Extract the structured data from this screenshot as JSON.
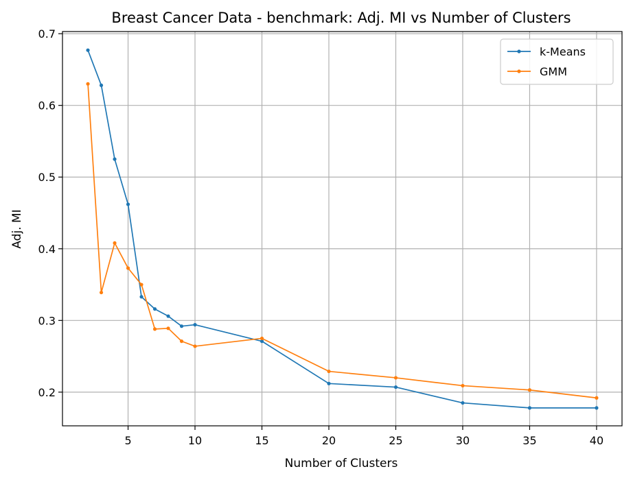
{
  "chart_data": {
    "type": "line",
    "title": "Breast Cancer Data - benchmark: Adj. MI vs Number of Clusters",
    "xlabel": "Number of Clusters",
    "ylabel": "Adj. MI",
    "xlim": [
      0.1,
      41.9
    ],
    "ylim": [
      0.153,
      0.703
    ],
    "xticks": [
      5,
      10,
      15,
      20,
      25,
      30,
      35,
      40
    ],
    "xtick_labels": [
      "5",
      "10",
      "15",
      "20",
      "25",
      "30",
      "35",
      "40"
    ],
    "yticks": [
      0.2,
      0.3,
      0.4,
      0.5,
      0.6,
      0.7
    ],
    "ytick_labels": [
      "0.2",
      "0.3",
      "0.4",
      "0.5",
      "0.6",
      "0.7"
    ],
    "grid": true,
    "legend_position": "top-right",
    "x": [
      2,
      3,
      4,
      5,
      6,
      7,
      8,
      9,
      10,
      15,
      20,
      25,
      30,
      35,
      40
    ],
    "series": [
      {
        "name": "k-Means",
        "color": "#1f77b4",
        "values": [
          0.677,
          0.628,
          0.525,
          0.462,
          0.333,
          0.316,
          0.306,
          0.292,
          0.294,
          0.271,
          0.212,
          0.207,
          0.185,
          0.178,
          0.178
        ]
      },
      {
        "name": "GMM",
        "color": "#ff7f0e",
        "values": [
          0.63,
          0.339,
          0.408,
          0.373,
          0.35,
          0.288,
          0.289,
          0.271,
          0.264,
          0.275,
          0.229,
          0.22,
          0.209,
          0.203,
          0.192
        ]
      }
    ]
  }
}
